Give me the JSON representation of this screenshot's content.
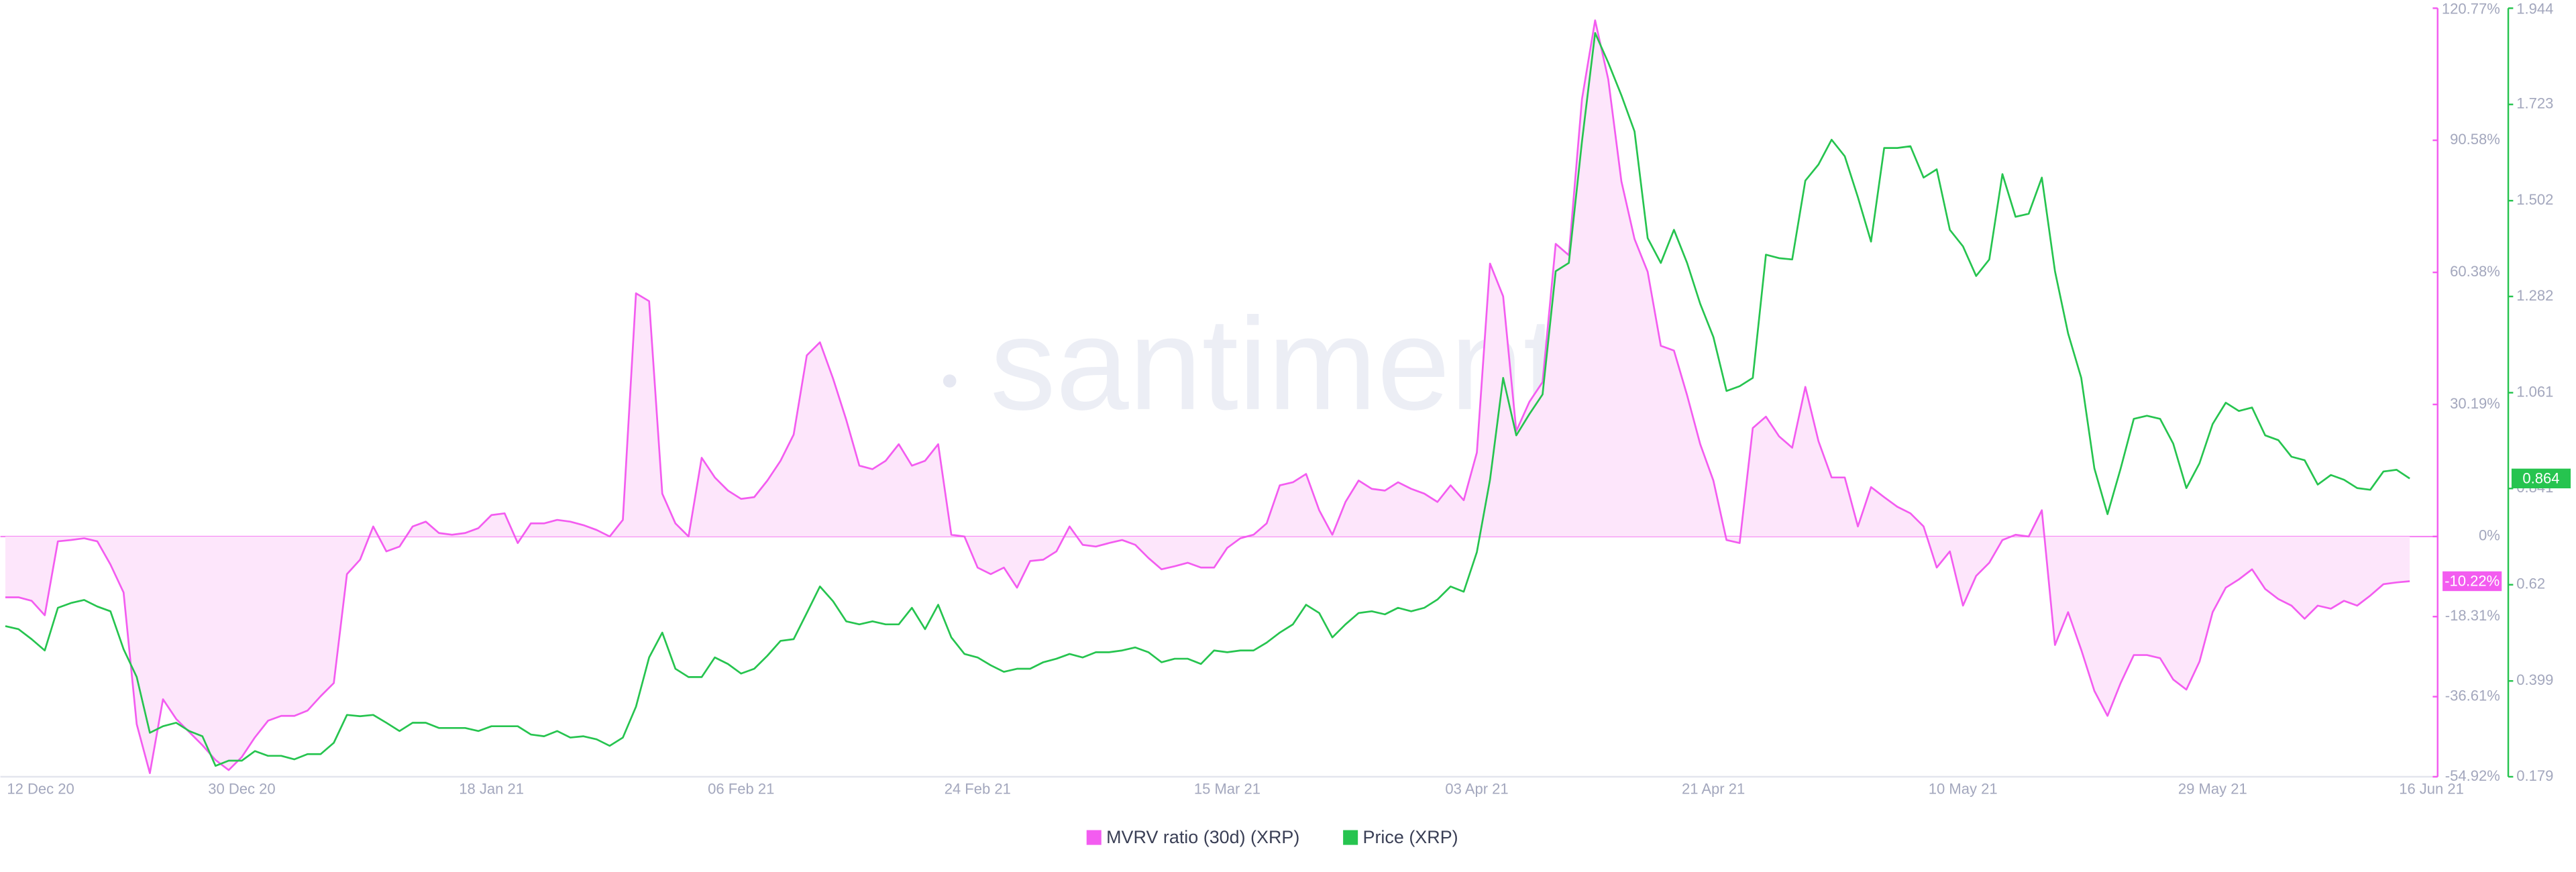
{
  "chart_data": {
    "type": "line",
    "watermark": "santiment",
    "categories": [
      "12 Dec 20",
      null,
      null,
      null,
      null,
      null,
      null,
      null,
      null,
      null,
      null,
      null,
      null,
      null,
      null,
      null,
      null,
      null,
      "30 Dec 20",
      null,
      null,
      null,
      null,
      null,
      null,
      null,
      null,
      null,
      null,
      null,
      null,
      null,
      null,
      null,
      null,
      null,
      null,
      "18 Jan 21",
      null,
      null,
      null,
      null,
      null,
      null,
      null,
      null,
      null,
      null,
      null,
      null,
      null,
      null,
      null,
      null,
      null,
      null,
      "06 Feb 21",
      null,
      null,
      null,
      null,
      null,
      null,
      null,
      null,
      null,
      null,
      null,
      null,
      null,
      null,
      null,
      null,
      null,
      "24 Feb 21",
      null,
      null,
      null,
      null,
      null,
      null,
      null,
      null,
      null,
      null,
      null,
      null,
      null,
      null,
      null,
      null,
      null,
      null,
      "15 Mar 21",
      null,
      null,
      null,
      null,
      null,
      null,
      null,
      null,
      null,
      null,
      null,
      null,
      null,
      null,
      null,
      null,
      null,
      null,
      "03 Apr 21",
      null,
      null,
      null,
      null,
      null,
      null,
      null,
      null,
      null,
      null,
      null,
      null,
      null,
      null,
      null,
      null,
      null,
      "21 Apr 21",
      null,
      null,
      null,
      null,
      null,
      null,
      null,
      null,
      null,
      null,
      null,
      null,
      null,
      null,
      null,
      null,
      null,
      null,
      "10 May 21",
      null,
      null,
      null,
      null,
      null,
      null,
      null,
      null,
      null,
      null,
      null,
      null,
      null,
      null,
      null,
      null,
      null,
      null,
      "29 May 21",
      null,
      null,
      null,
      null,
      null,
      null,
      null,
      null,
      null,
      null,
      null,
      null,
      null,
      null,
      null,
      null,
      null,
      "16 Jun 21"
    ],
    "series": [
      {
        "name": "MVRV ratio (30d) (XRP)",
        "color": "#f35cf0",
        "fill": "#fde6fb",
        "values": [
          -13.9,
          -13.9,
          -14.7,
          -18,
          -1.1,
          -0.8,
          -0.4,
          -1.1,
          -6.4,
          -12.8,
          -42.9,
          -54.1,
          -37.2,
          -41.7,
          -44.7,
          -47.7,
          -51.1,
          -53.4,
          -50.4,
          -45.9,
          -42.1,
          -41,
          -41,
          -39.8,
          -36.5,
          -33.5,
          -8.6,
          -5.3,
          2.3,
          -3.4,
          -2.3,
          2.3,
          3.4,
          0.8,
          0.4,
          0.8,
          1.9,
          4.9,
          5.3,
          -1.5,
          3,
          3,
          3.8,
          3.4,
          2.6,
          1.5,
          0,
          3.8,
          55.6,
          53.8,
          9.8,
          3,
          0,
          18,
          13.5,
          10.5,
          8.6,
          9,
          12.8,
          17.3,
          23.3,
          41.4,
          44.4,
          36.1,
          26.7,
          16.2,
          15.4,
          17.3,
          21.1,
          16.2,
          17.3,
          21.1,
          0.4,
          0,
          -7.1,
          -8.6,
          -7.1,
          -11.7,
          -5.6,
          -5.3,
          -3.4,
          2.3,
          -1.9,
          -2.3,
          -1.5,
          -0.8,
          -1.9,
          -4.9,
          -7.5,
          -6.8,
          -6,
          -7.1,
          -7.1,
          -2.6,
          -0.4,
          0.4,
          3,
          11.7,
          12.4,
          14.3,
          6,
          0.4,
          7.9,
          12.8,
          10.9,
          10.5,
          12.4,
          10.9,
          9.8,
          7.9,
          11.7,
          8.3,
          19.2,
          62.4,
          54.9,
          24.1,
          30.8,
          35.3,
          66.9,
          64.3,
          100,
          118,
          104.5,
          81.2,
          68,
          60.5,
          43.6,
          42.5,
          32.3,
          21.1,
          12.8,
          -0.8,
          -1.5,
          24.8,
          27.4,
          22.9,
          20.3,
          34.2,
          21.8,
          13.5,
          13.5,
          2.3,
          11.3,
          9,
          6.8,
          5.3,
          2.3,
          -7.1,
          -3.4,
          -15.8,
          -9,
          -6,
          -0.8,
          0.4,
          0,
          6,
          -24.8,
          -17.3,
          -25.9,
          -35.3,
          -41,
          -33.5,
          -27.1,
          -27.1,
          -27.8,
          -32.7,
          -35,
          -28.6,
          -17.3,
          -11.7,
          -9.8,
          -7.5,
          -12,
          -14.3,
          -15.8,
          -18.8,
          -15.8,
          -16.5,
          -14.7,
          -15.8,
          -13.5,
          -10.9,
          -10.5,
          -10.22,
          null,
          null,
          null
        ],
        "value_labels": [
          null,
          null,
          null,
          null,
          null,
          null,
          null,
          null,
          null,
          null,
          null,
          null,
          null,
          null,
          null,
          null,
          null,
          null,
          null,
          null,
          null,
          null,
          null,
          null,
          null,
          null,
          null,
          null,
          null,
          null,
          null,
          null,
          null,
          null,
          null,
          null,
          null,
          null,
          null,
          null,
          null,
          null,
          null,
          null,
          null,
          null,
          null,
          null,
          null,
          null,
          null,
          null,
          null,
          null,
          null,
          null,
          null,
          null,
          null,
          null,
          null,
          null,
          null,
          null,
          null,
          null,
          null,
          null,
          null,
          null,
          null,
          null,
          null,
          null,
          null,
          null,
          null,
          null,
          null,
          null,
          null,
          null,
          null,
          null,
          null,
          null,
          null,
          null,
          null,
          null,
          null,
          null,
          null,
          null,
          null,
          null,
          null,
          null,
          null,
          null,
          null,
          null,
          null,
          null,
          null,
          null,
          null,
          null,
          null,
          null,
          null,
          null,
          null,
          null,
          null,
          null,
          null,
          null,
          null,
          null,
          null,
          null,
          null,
          null,
          null,
          null,
          null,
          null,
          null,
          null,
          null,
          null,
          null,
          null,
          null,
          null,
          null,
          null,
          null,
          null,
          null,
          null,
          null,
          null,
          null,
          null,
          null,
          null,
          null,
          null,
          null,
          null,
          null,
          null,
          null,
          null,
          null,
          null,
          null,
          null,
          null,
          null,
          null,
          null,
          null,
          null,
          null,
          null,
          null,
          null,
          null,
          null,
          null,
          null,
          null,
          null,
          null,
          null,
          null,
          null,
          null,
          null,
          null,
          "-10.22%",
          null,
          null,
          null
        ]
      },
      {
        "name": "Price (XRP)",
        "color": "#26c44f",
        "axis": "y2",
        "values": [
          0.525,
          0.518,
          0.495,
          0.469,
          0.567,
          0.578,
          0.585,
          0.57,
          0.559,
          0.472,
          0.408,
          0.28,
          0.295,
          0.303,
          0.284,
          0.272,
          0.204,
          0.216,
          0.216,
          0.238,
          0.227,
          0.227,
          0.219,
          0.231,
          0.231,
          0.257,
          0.321,
          0.318,
          0.321,
          0.303,
          0.284,
          0.303,
          0.303,
          0.291,
          0.291,
          0.291,
          0.284,
          0.295,
          0.295,
          0.295,
          0.276,
          0.272,
          0.284,
          0.269,
          0.272,
          0.265,
          0.25,
          0.269,
          0.34,
          0.453,
          0.51,
          0.427,
          0.408,
          0.408,
          0.453,
          0.438,
          0.416,
          0.427,
          0.457,
          0.491,
          0.495,
          0.555,
          0.616,
          0.582,
          0.536,
          0.529,
          0.536,
          0.529,
          0.529,
          0.567,
          0.518,
          0.574,
          0.499,
          0.461,
          0.453,
          0.435,
          0.42,
          0.427,
          0.427,
          0.442,
          0.45,
          0.461,
          0.453,
          0.465,
          0.465,
          0.469,
          0.476,
          0.465,
          0.442,
          0.45,
          0.45,
          0.438,
          0.469,
          0.465,
          0.469,
          0.469,
          0.487,
          0.51,
          0.529,
          0.574,
          0.555,
          0.499,
          0.529,
          0.555,
          0.559,
          0.552,
          0.567,
          0.559,
          0.567,
          0.586,
          0.616,
          0.604,
          0.695,
          0.861,
          1.095,
          0.963,
          1.012,
          1.057,
          1.34,
          1.359,
          1.638,
          1.887,
          1.819,
          1.744,
          1.661,
          1.416,
          1.359,
          1.435,
          1.359,
          1.265,
          1.189,
          1.065,
          1.076,
          1.095,
          1.378,
          1.37,
          1.367,
          1.548,
          1.585,
          1.642,
          1.604,
          1.51,
          1.408,
          1.623,
          1.623,
          1.627,
          1.555,
          1.574,
          1.435,
          1.397,
          1.329,
          1.367,
          1.563,
          1.465,
          1.472,
          1.555,
          1.34,
          1.197,
          1.095,
          0.887,
          0.782,
          0.887,
          1.001,
          1.008,
          1.001,
          0.944,
          0.842,
          0.899,
          0.989,
          1.038,
          1.019,
          1.027,
          0.963,
          0.952,
          0.914,
          0.906,
          0.85,
          0.872,
          0.861,
          0.842,
          0.838,
          0.88,
          0.884,
          0.864,
          null,
          null,
          null
        ]
      }
    ],
    "ylim": [
      -54.92,
      120.77
    ],
    "yticks": [
      {
        "value": -54.92,
        "label": "-54.92%"
      },
      {
        "value": -36.61,
        "label": "-36.61%"
      },
      {
        "value": -18.31,
        "label": "-18.31%"
      },
      {
        "value": 0,
        "label": "0%"
      },
      {
        "value": 30.19,
        "label": "30.19%"
      },
      {
        "value": 60.38,
        "label": "60.38%"
      },
      {
        "value": 90.58,
        "label": "90.58%"
      },
      {
        "value": 120.77,
        "label": "120.77%"
      }
    ],
    "y2lim": [
      0.179,
      1.944
    ],
    "y2ticks": [
      0.179,
      0.399,
      0.62,
      0.841,
      1.061,
      1.282,
      1.502,
      1.723,
      1.944
    ],
    "legend": "bottom"
  }
}
